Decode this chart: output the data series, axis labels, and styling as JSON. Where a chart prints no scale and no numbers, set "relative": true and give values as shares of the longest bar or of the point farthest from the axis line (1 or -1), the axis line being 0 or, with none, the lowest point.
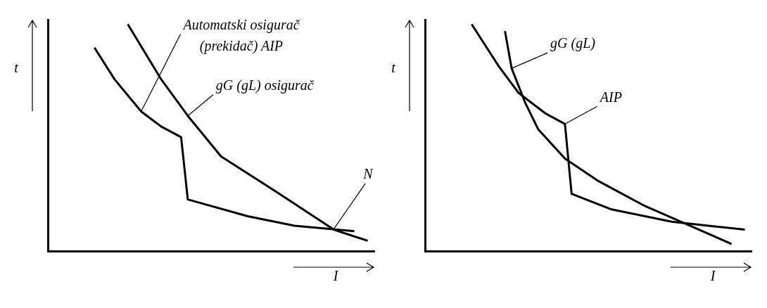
{
  "chart_data": [
    {
      "type": "line",
      "relative": true,
      "xlabel": "I",
      "ylabel": "t",
      "grid": false,
      "legend": false,
      "marker": "none",
      "line_style": "solid",
      "categories": [
        null,
        null,
        null,
        null,
        null,
        null,
        null,
        null,
        null,
        null,
        null,
        null,
        null,
        null,
        null,
        null,
        null,
        null,
        null,
        null,
        null,
        null,
        null,
        null,
        null,
        null,
        null,
        null,
        null,
        null,
        null,
        null,
        null,
        null,
        null,
        null,
        null,
        null,
        null,
        null,
        null,
        null,
        null,
        null,
        null,
        null,
        null,
        null,
        null,
        null
      ],
      "series": [
        {
          "name": "Automatski osigurač (prekidač) AIP",
          "color": "#000000",
          "values": [
            null,
            null,
            null,
            null,
            null,
            null,
            null,
            0.897,
            null,
            null,
            0.758,
            null,
            null,
            null,
            0.616,
            null,
            null,
            0.55,
            null,
            null,
            0.503,
            0.229,
            null,
            null,
            null,
            null,
            null,
            null,
            null,
            null,
            0.155,
            null,
            null,
            null,
            null,
            null,
            null,
            0.113,
            null,
            null,
            null,
            null,
            null,
            null,
            null,
            null,
            0.089,
            null,
            null,
            null
          ]
        },
        {
          "name": "gG (gL) osigurač",
          "color": "#000000",
          "values": [
            null,
            null,
            null,
            null,
            null,
            null,
            null,
            null,
            null,
            null,
            null,
            null,
            1,
            null,
            null,
            null,
            null,
            0.758,
            null,
            null,
            null,
            0.597,
            null,
            null,
            null,
            null,
            0.418,
            null,
            null,
            null,
            null,
            null,
            null,
            null,
            0.268,
            null,
            null,
            null,
            null,
            null,
            null,
            null,
            null,
            0.095,
            null,
            null,
            null,
            null,
            0.047,
            null
          ]
        }
      ],
      "annotations": [
        "N"
      ]
    },
    {
      "type": "line",
      "relative": true,
      "xlabel": "I",
      "ylabel": "t",
      "grid": false,
      "legend": false,
      "marker": "none",
      "line_style": "solid",
      "categories": [
        null,
        null,
        null,
        null,
        null,
        null,
        null,
        null,
        null,
        null,
        null,
        null,
        null,
        null,
        null,
        null,
        null,
        null,
        null,
        null,
        null,
        null,
        null,
        null,
        null,
        null,
        null,
        null,
        null,
        null,
        null,
        null,
        null,
        null,
        null,
        null,
        null,
        null,
        null,
        null,
        null,
        null,
        null,
        null,
        null,
        null,
        null,
        null,
        null,
        null
      ],
      "series": [
        {
          "name": "AIP",
          "color": "#000000",
          "values": [
            null,
            null,
            null,
            null,
            null,
            null,
            null,
            1,
            null,
            null,
            null,
            0.818,
            null,
            null,
            0.699,
            null,
            null,
            null,
            0.609,
            null,
            null,
            0.561,
            0.254,
            null,
            null,
            null,
            null,
            null,
            0.185,
            null,
            null,
            null,
            null,
            null,
            null,
            null,
            null,
            0.131,
            null,
            null,
            null,
            null,
            null,
            null,
            null,
            null,
            null,
            null,
            0.096,
            null
          ]
        },
        {
          "name": "gG (gL)",
          "color": "#000000",
          "values": [
            null,
            null,
            null,
            null,
            null,
            null,
            null,
            null,
            null,
            null,
            null,
            null,
            0.97,
            0.806,
            null,
            0.657,
            null,
            0.537,
            null,
            null,
            null,
            0.409,
            null,
            null,
            null,
            null,
            0.31,
            null,
            null,
            null,
            null,
            null,
            null,
            0.2,
            null,
            null,
            null,
            null,
            null,
            null,
            null,
            null,
            null,
            null,
            null,
            null,
            0.033,
            null,
            null,
            null
          ]
        }
      ]
    }
  ]
}
